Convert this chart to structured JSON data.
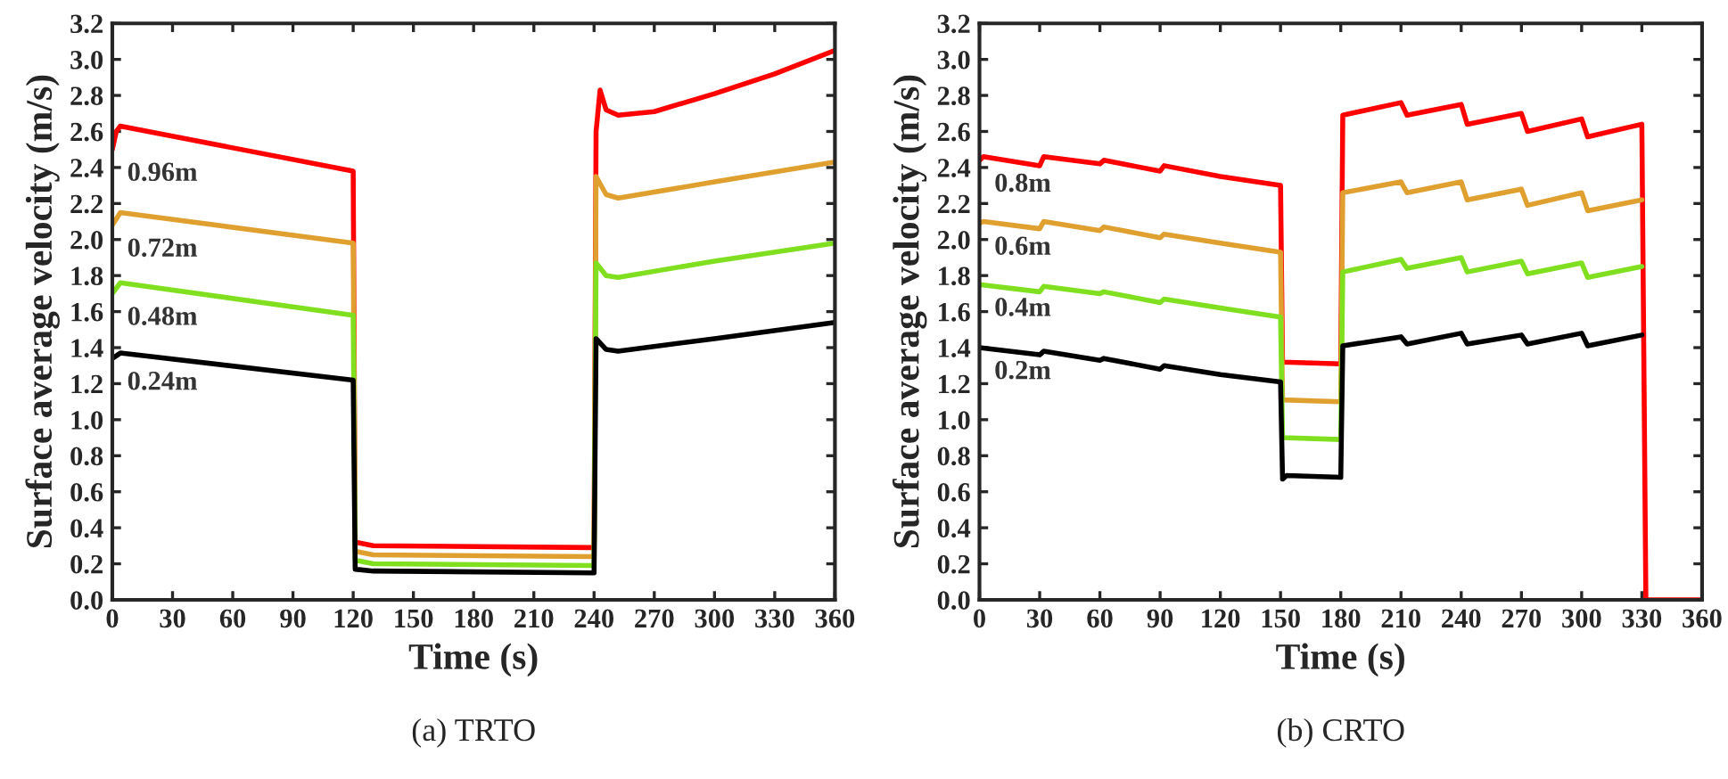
{
  "chart_data": [
    {
      "type": "line",
      "title": "(a) TRTO",
      "xlabel": "Time (s)",
      "ylabel": "Surface average velocity (m/s)",
      "xlim": [
        0,
        360
      ],
      "ylim": [
        0,
        3.2
      ],
      "xticks": [
        0,
        30,
        60,
        90,
        120,
        150,
        180,
        210,
        240,
        270,
        300,
        330,
        360
      ],
      "yticks": [
        {
          "value": 0,
          "label": "0.0"
        },
        {
          "value": 0.2,
          "label": "0.2"
        },
        {
          "value": 0.4,
          "label": "0.4"
        },
        {
          "value": 0.6,
          "label": "0.6"
        },
        {
          "value": 0.8,
          "label": "0.8"
        },
        {
          "value": 1.0,
          "label": "1.0"
        },
        {
          "value": 1.2,
          "label": "1.2"
        },
        {
          "value": 1.4,
          "label": "1.4"
        },
        {
          "value": 1.6,
          "label": "1.6"
        },
        {
          "value": 1.8,
          "label": "1.8"
        },
        {
          "value": 2.0,
          "label": "2.0"
        },
        {
          "value": 2.2,
          "label": "2.2"
        },
        {
          "value": 2.4,
          "label": "2.4"
        },
        {
          "value": 2.6,
          "label": "2.6"
        },
        {
          "value": 2.8,
          "label": "2.8"
        },
        {
          "value": 3.0,
          "label": "3.0"
        },
        {
          "value": 3.2,
          "label": "3.2"
        }
      ],
      "grid": false,
      "series": [
        {
          "name": "0.96m",
          "color": "#ff0000",
          "x": [
            0,
            2,
            4,
            120,
            121,
            130,
            240,
            241,
            243,
            246,
            252,
            270,
            300,
            330,
            360
          ],
          "values": [
            2.5,
            2.6,
            2.63,
            2.38,
            0.32,
            0.3,
            0.29,
            2.6,
            2.83,
            2.72,
            2.69,
            2.71,
            2.81,
            2.92,
            3.05
          ]
        },
        {
          "name": "0.72m",
          "color": "#e0a030",
          "x": [
            0,
            4,
            120,
            121,
            130,
            240,
            241,
            246,
            252,
            300,
            360
          ],
          "values": [
            2.08,
            2.15,
            1.98,
            0.27,
            0.25,
            0.24,
            2.35,
            2.25,
            2.23,
            2.32,
            2.43
          ]
        },
        {
          "name": "0.48m",
          "color": "#80e020",
          "x": [
            0,
            4,
            120,
            121,
            130,
            240,
            241,
            246,
            252,
            300,
            360
          ],
          "values": [
            1.7,
            1.76,
            1.58,
            0.22,
            0.2,
            0.19,
            1.87,
            1.8,
            1.79,
            1.88,
            1.98
          ]
        },
        {
          "name": "0.24m",
          "color": "#000000",
          "x": [
            0,
            4,
            120,
            121,
            130,
            240,
            241,
            246,
            252,
            300,
            360
          ],
          "values": [
            1.34,
            1.37,
            1.22,
            0.17,
            0.16,
            0.15,
            1.45,
            1.39,
            1.38,
            1.45,
            1.54
          ]
        }
      ]
    },
    {
      "type": "line",
      "title": "(b) CRTO",
      "xlabel": "Time (s)",
      "ylabel": "Surface average velocity (m/s)",
      "xlim": [
        0,
        360
      ],
      "ylim": [
        0,
        3.2
      ],
      "xticks": [
        0,
        30,
        60,
        90,
        120,
        150,
        180,
        210,
        240,
        270,
        300,
        330,
        360
      ],
      "yticks": [
        {
          "value": 0,
          "label": "0.0"
        },
        {
          "value": 0.2,
          "label": "0.2"
        },
        {
          "value": 0.4,
          "label": "0.4"
        },
        {
          "value": 0.6,
          "label": "0.6"
        },
        {
          "value": 0.8,
          "label": "0.8"
        },
        {
          "value": 1.0,
          "label": "1.0"
        },
        {
          "value": 1.2,
          "label": "1.2"
        },
        {
          "value": 1.4,
          "label": "1.4"
        },
        {
          "value": 1.6,
          "label": "1.6"
        },
        {
          "value": 1.8,
          "label": "1.8"
        },
        {
          "value": 2.0,
          "label": "2.0"
        },
        {
          "value": 2.2,
          "label": "2.2"
        },
        {
          "value": 2.4,
          "label": "2.4"
        },
        {
          "value": 2.6,
          "label": "2.6"
        },
        {
          "value": 2.8,
          "label": "2.8"
        },
        {
          "value": 3.0,
          "label": "3.0"
        },
        {
          "value": 3.2,
          "label": "3.2"
        }
      ],
      "grid": false,
      "series": [
        {
          "name": "0.8m",
          "color": "#ff0000",
          "x": [
            0,
            2,
            30,
            32,
            60,
            62,
            90,
            92,
            120,
            150,
            151,
            180,
            181,
            210,
            213,
            240,
            243,
            270,
            273,
            300,
            303,
            330,
            332,
            360
          ],
          "values": [
            2.44,
            2.46,
            2.41,
            2.46,
            2.42,
            2.44,
            2.38,
            2.41,
            2.35,
            2.3,
            1.32,
            1.31,
            2.69,
            2.76,
            2.69,
            2.75,
            2.64,
            2.7,
            2.6,
            2.67,
            2.57,
            2.64,
            0.0,
            0.0
          ]
        },
        {
          "name": "0.6m",
          "color": "#e0a030",
          "x": [
            0,
            2,
            30,
            32,
            60,
            62,
            90,
            92,
            120,
            150,
            151,
            180,
            181,
            210,
            213,
            240,
            243,
            270,
            273,
            300,
            303,
            330
          ],
          "values": [
            2.09,
            2.1,
            2.06,
            2.1,
            2.05,
            2.07,
            2.01,
            2.03,
            1.98,
            1.93,
            1.11,
            1.1,
            2.26,
            2.32,
            2.26,
            2.32,
            2.22,
            2.28,
            2.19,
            2.26,
            2.16,
            2.22
          ]
        },
        {
          "name": "0.4m",
          "color": "#80e020",
          "x": [
            0,
            30,
            32,
            60,
            62,
            90,
            92,
            120,
            150,
            151,
            180,
            181,
            210,
            213,
            240,
            243,
            270,
            273,
            300,
            303,
            330
          ],
          "values": [
            1.75,
            1.71,
            1.74,
            1.7,
            1.71,
            1.65,
            1.67,
            1.62,
            1.57,
            0.9,
            0.89,
            1.82,
            1.89,
            1.84,
            1.9,
            1.82,
            1.88,
            1.81,
            1.87,
            1.79,
            1.85
          ]
        },
        {
          "name": "0.2m",
          "color": "#000000",
          "x": [
            0,
            30,
            32,
            60,
            62,
            90,
            92,
            120,
            150,
            151,
            153,
            180,
            181,
            210,
            213,
            240,
            243,
            270,
            273,
            300,
            303,
            330
          ],
          "values": [
            1.4,
            1.36,
            1.38,
            1.33,
            1.34,
            1.28,
            1.3,
            1.25,
            1.21,
            0.67,
            0.69,
            0.68,
            1.41,
            1.46,
            1.42,
            1.48,
            1.42,
            1.47,
            1.42,
            1.48,
            1.41,
            1.47
          ]
        }
      ]
    }
  ]
}
